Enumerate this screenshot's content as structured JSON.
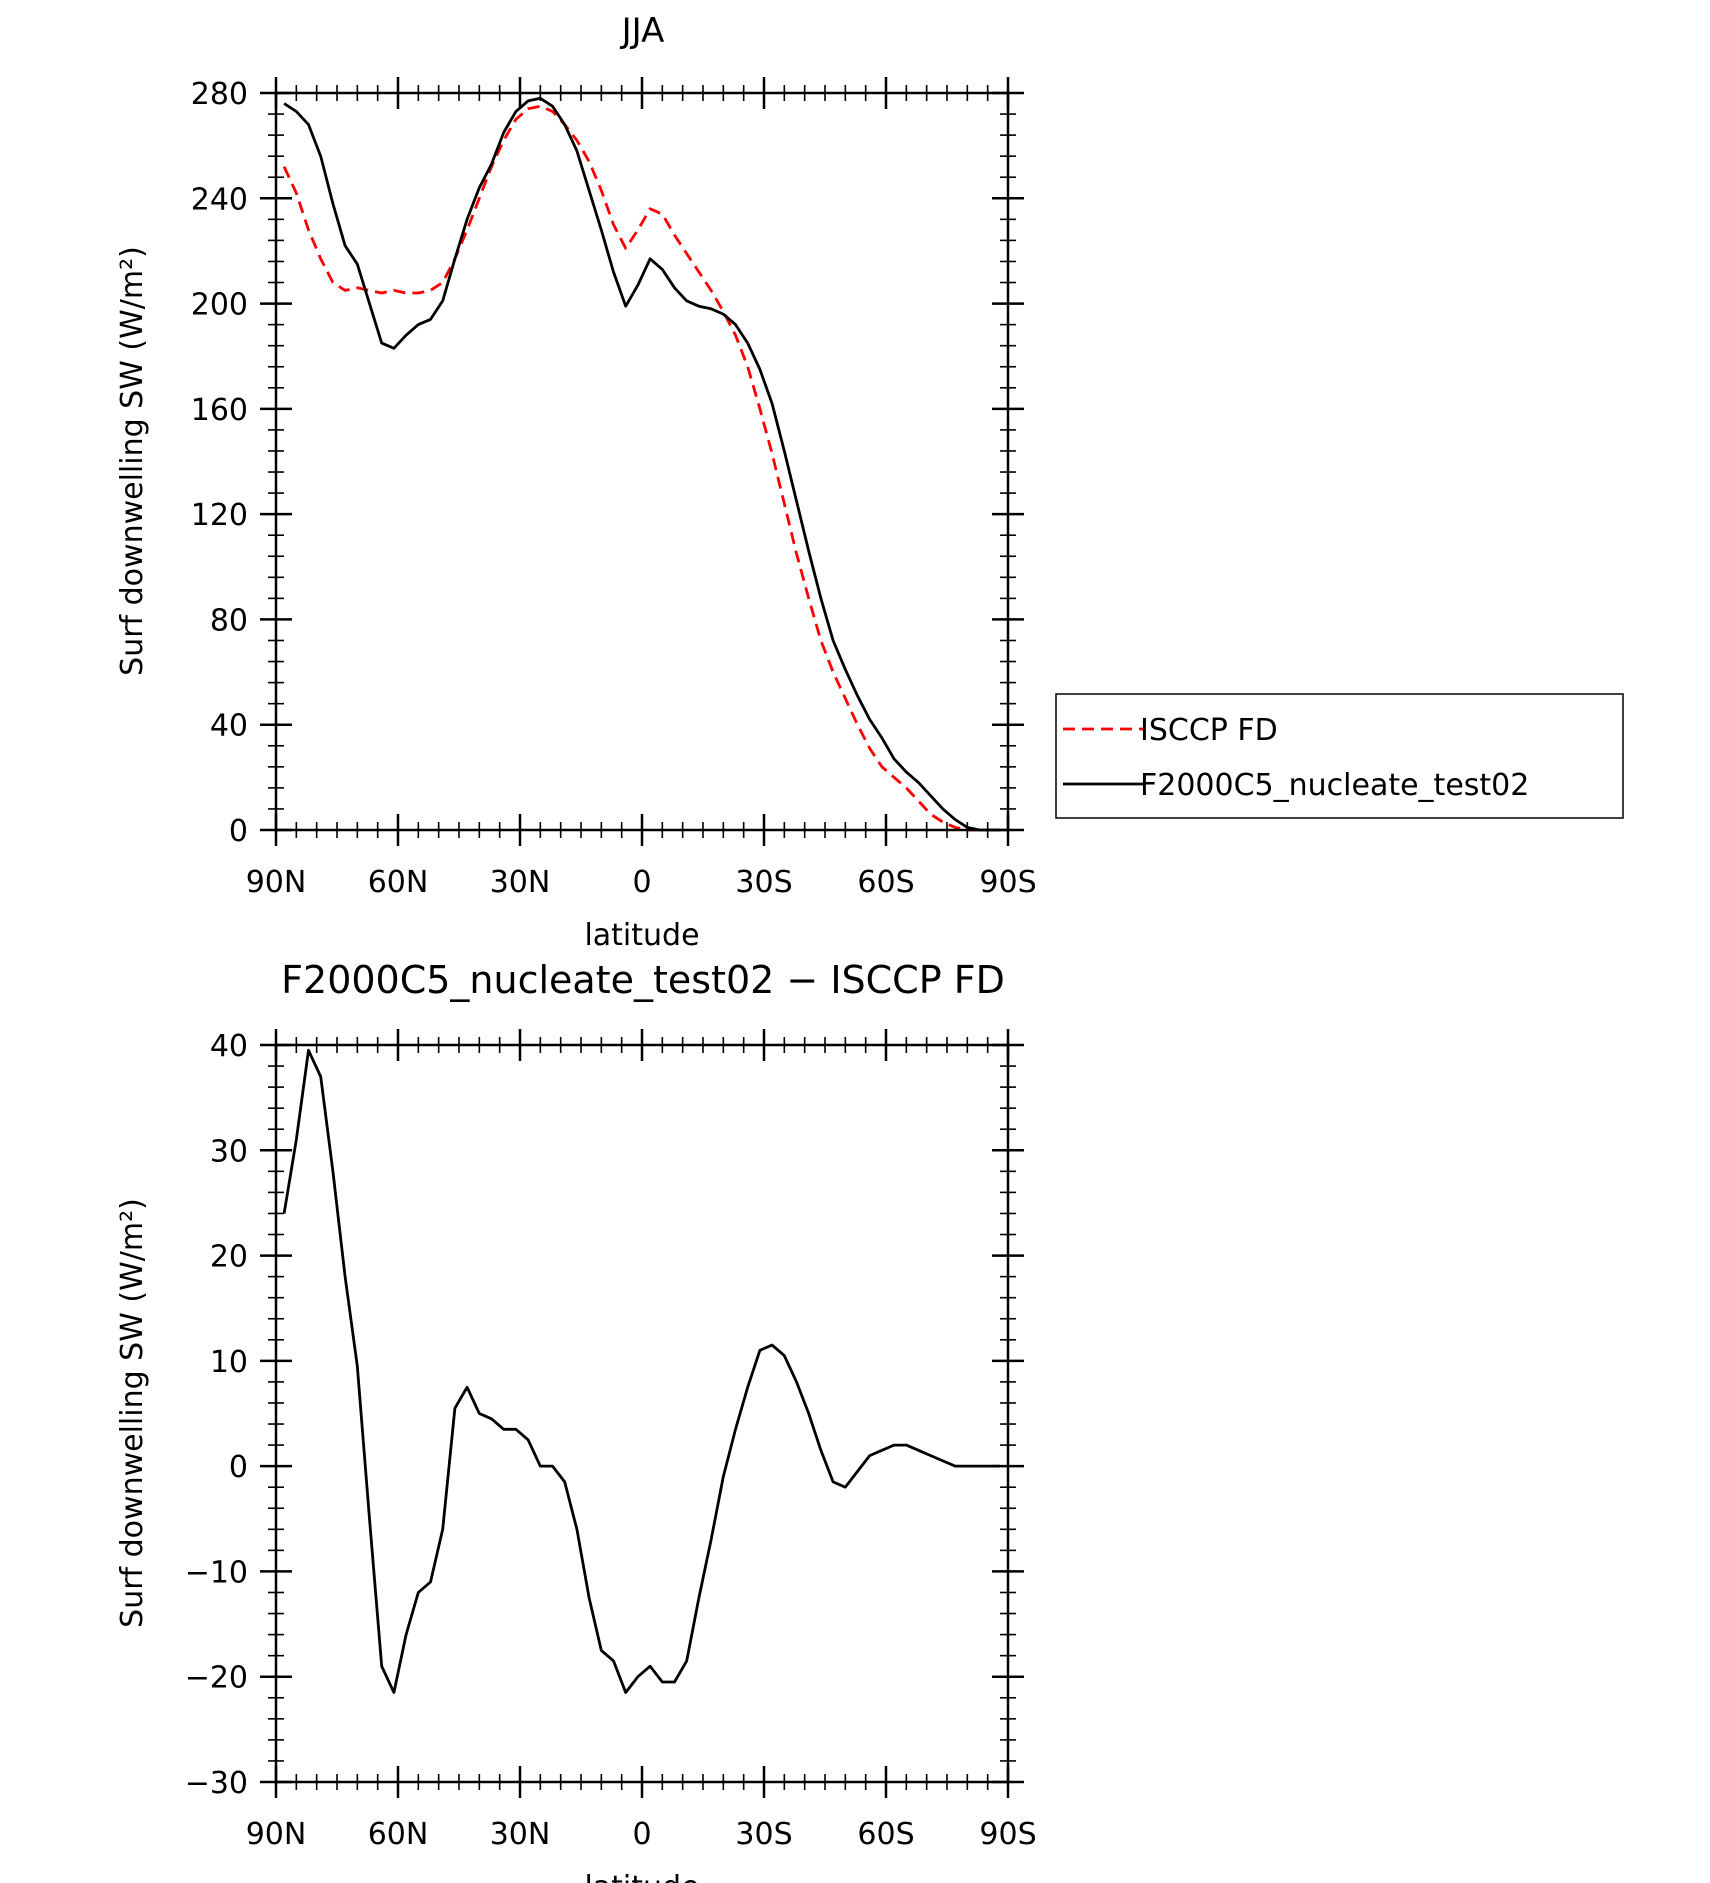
{
  "chart_data": [
    {
      "type": "line",
      "title": "JJA",
      "xlabel": "latitude",
      "ylabel": "Surf downwelling SW (W/m²)",
      "xlim": [
        90,
        -90
      ],
      "ylim": [
        0,
        280
      ],
      "x_ticks": [
        90,
        60,
        30,
        0,
        -30,
        -60,
        -90
      ],
      "x_tick_labels": [
        "90N",
        "60N",
        "30N",
        "0",
        "30S",
        "60S",
        "90S"
      ],
      "y_ticks": [
        0,
        40,
        80,
        120,
        160,
        200,
        240,
        280
      ],
      "y_tick_labels": [
        "0",
        "40",
        "80",
        "120",
        "160",
        "200",
        "240",
        "280"
      ],
      "legend": {
        "position": "right",
        "entries": [
          "ISCCP FD",
          "F2000C5_nucleate_test02"
        ]
      },
      "grid": false,
      "series": [
        {
          "name": "ISCCP FD",
          "color": "#ff0000",
          "dash": "dashed",
          "x": [
            88,
            85,
            82,
            79,
            76,
            73,
            70,
            67,
            64,
            61,
            58,
            55,
            52,
            49,
            46,
            43,
            40,
            37,
            34,
            31,
            28,
            25,
            22,
            19,
            16,
            13,
            10,
            7,
            4,
            1,
            -2,
            -5,
            -8,
            -11,
            -14,
            -17,
            -20,
            -23,
            -26,
            -29,
            -32,
            -35,
            -38,
            -41,
            -44,
            -47,
            -50,
            -53,
            -56,
            -59,
            -62,
            -65,
            -68,
            -71,
            -74,
            -77,
            -80,
            -83,
            -86,
            -88
          ],
          "y": [
            252,
            242,
            228,
            217,
            208,
            205,
            206,
            205,
            204,
            205,
            204,
            204,
            205,
            208,
            217,
            228,
            240,
            252,
            262,
            270,
            274,
            275,
            273,
            268,
            262,
            254,
            243,
            230,
            221,
            228,
            236,
            234,
            226,
            219,
            212,
            205,
            197,
            188,
            176,
            160,
            143,
            124,
            105,
            88,
            72,
            60,
            50,
            40,
            31,
            24,
            20,
            16,
            11,
            6,
            3,
            1,
            0,
            0,
            0,
            0
          ]
        },
        {
          "name": "F2000C5_nucleate_test02",
          "color": "#000000",
          "dash": "solid",
          "x": [
            88,
            85,
            82,
            79,
            76,
            73,
            70,
            67,
            64,
            61,
            58,
            55,
            52,
            49,
            46,
            43,
            40,
            37,
            34,
            31,
            28,
            25,
            22,
            19,
            16,
            13,
            10,
            7,
            4,
            1,
            -2,
            -5,
            -8,
            -11,
            -14,
            -17,
            -20,
            -23,
            -26,
            -29,
            -32,
            -35,
            -38,
            -41,
            -44,
            -47,
            -50,
            -53,
            -56,
            -59,
            -62,
            -65,
            -68,
            -71,
            -74,
            -77,
            -80,
            -83,
            -86,
            -88
          ],
          "y": [
            276,
            273,
            268,
            256,
            238,
            222,
            215,
            200,
            185,
            183,
            188,
            192,
            194,
            201,
            217,
            232,
            244,
            253,
            265,
            273,
            277,
            278,
            275,
            268,
            258,
            243,
            228,
            212,
            199,
            207,
            217,
            213,
            206,
            201,
            199,
            198,
            196,
            192,
            185,
            175,
            162,
            144,
            125,
            106,
            88,
            72,
            61,
            51,
            42,
            35,
            27,
            22,
            18,
            13,
            8,
            4,
            1,
            0,
            0,
            0
          ]
        }
      ]
    },
    {
      "type": "line",
      "title": "F2000C5_nucleate_test02 − ISCCP FD",
      "xlabel": "latitude",
      "ylabel": "Surf downwelling SW (W/m²)",
      "xlim": [
        90,
        -90
      ],
      "ylim": [
        -30,
        40
      ],
      "x_ticks": [
        90,
        60,
        30,
        0,
        -30,
        -60,
        -90
      ],
      "x_tick_labels": [
        "90N",
        "60N",
        "30N",
        "0",
        "30S",
        "60S",
        "90S"
      ],
      "y_ticks": [
        -30,
        -20,
        -10,
        0,
        10,
        20,
        30,
        40
      ],
      "y_tick_labels": [
        "−30",
        "−20",
        "−10",
        "0",
        "10",
        "20",
        "30",
        "40"
      ],
      "grid": false,
      "series": [
        {
          "color": "#000000",
          "dash": "solid",
          "x": [
            88,
            85,
            82,
            79,
            76,
            73,
            70,
            67,
            64,
            61,
            58,
            55,
            52,
            49,
            46,
            43,
            40,
            37,
            34,
            31,
            28,
            25,
            22,
            19,
            16,
            13,
            10,
            7,
            4,
            1,
            -2,
            -5,
            -8,
            -11,
            -14,
            -17,
            -20,
            -23,
            -26,
            -29,
            -32,
            -35,
            -38,
            -41,
            -44,
            -47,
            -50,
            -53,
            -56,
            -59,
            -62,
            -65,
            -68,
            -71,
            -74,
            -77,
            -80,
            -83,
            -86,
            -88
          ],
          "y": [
            24,
            31,
            39.5,
            37,
            28,
            18,
            9.5,
            -5,
            -19,
            -21.5,
            -16,
            -12,
            -11,
            -6,
            5.5,
            7.5,
            5,
            4.5,
            3.5,
            3.5,
            2.5,
            0,
            0,
            -1.5,
            -6,
            -12.5,
            -17.5,
            -18.5,
            -21.5,
            -20,
            -19,
            -20.5,
            -20.5,
            -18.5,
            -12.5,
            -7,
            -1,
            3.5,
            7.5,
            11,
            11.5,
            10.5,
            8,
            5,
            1.5,
            -1.5,
            -2,
            -0.5,
            1,
            1.5,
            2,
            2,
            1.5,
            1,
            0.5,
            0,
            0,
            0,
            0,
            0
          ]
        }
      ]
    }
  ]
}
